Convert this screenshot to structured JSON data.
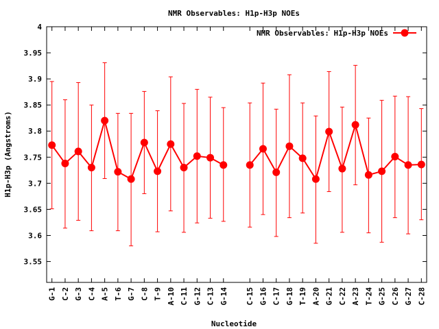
{
  "chart_data": {
    "type": "line",
    "title": "NMR Observables: H1p-H3p NOEs",
    "xlabel": "Nucleotide",
    "ylabel": "H1p-H3p (Angstroms)",
    "ylim": [
      3.51,
      4.0
    ],
    "yticks": [
      "3.55",
      "3.6",
      "3.65",
      "3.7",
      "3.75",
      "3.8",
      "3.85",
      "3.9",
      "3.95",
      "4"
    ],
    "grid": false,
    "legend_position": "top-right",
    "series": [
      {
        "name": "NMR Observables: H1p-H3p NOEs",
        "color": "#ff0000",
        "points": [
          {
            "x": 1,
            "label": "G-1",
            "y": 3.773,
            "err_low": 3.651,
            "err_high": 3.895
          },
          {
            "x": 2,
            "label": "C-2",
            "y": 3.738,
            "err_low": 3.614,
            "err_high": 3.86
          },
          {
            "x": 3,
            "label": "G-3",
            "y": 3.761,
            "err_low": 3.629,
            "err_high": 3.893
          },
          {
            "x": 4,
            "label": "C-4",
            "y": 3.73,
            "err_low": 3.609,
            "err_high": 3.85
          },
          {
            "x": 5,
            "label": "A-5",
            "y": 3.82,
            "err_low": 3.709,
            "err_high": 3.931
          },
          {
            "x": 6,
            "label": "T-6",
            "y": 3.722,
            "err_low": 3.609,
            "err_high": 3.834
          },
          {
            "x": 7,
            "label": "G-7",
            "y": 3.708,
            "err_low": 3.58,
            "err_high": 3.834
          },
          {
            "x": 8,
            "label": "C-8",
            "y": 3.778,
            "err_low": 3.68,
            "err_high": 3.876
          },
          {
            "x": 9,
            "label": "T-9",
            "y": 3.723,
            "err_low": 3.607,
            "err_high": 3.839
          },
          {
            "x": 10,
            "label": "A-10",
            "y": 3.775,
            "err_low": 3.647,
            "err_high": 3.904
          },
          {
            "x": 11,
            "label": "C-11",
            "y": 3.73,
            "err_low": 3.606,
            "err_high": 3.853
          },
          {
            "x": 12,
            "label": "G-12",
            "y": 3.752,
            "err_low": 3.624,
            "err_high": 3.88
          },
          {
            "x": 13,
            "label": "C-13",
            "y": 3.749,
            "err_low": 3.633,
            "err_high": 3.865
          },
          {
            "x": 14,
            "label": "G-14",
            "y": 3.735,
            "err_low": 3.627,
            "err_high": 3.845
          },
          {
            "x": 16,
            "label": "C-15",
            "y": 3.735,
            "err_low": 3.616,
            "err_high": 3.854
          },
          {
            "x": 17,
            "label": "G-16",
            "y": 3.766,
            "err_low": 3.64,
            "err_high": 3.892
          },
          {
            "x": 18,
            "label": "C-17",
            "y": 3.721,
            "err_low": 3.598,
            "err_high": 3.842
          },
          {
            "x": 19,
            "label": "G-18",
            "y": 3.771,
            "err_low": 3.634,
            "err_high": 3.908
          },
          {
            "x": 20,
            "label": "T-19",
            "y": 3.748,
            "err_low": 3.643,
            "err_high": 3.854
          },
          {
            "x": 21,
            "label": "A-20",
            "y": 3.708,
            "err_low": 3.585,
            "err_high": 3.829
          },
          {
            "x": 22,
            "label": "G-21",
            "y": 3.799,
            "err_low": 3.684,
            "err_high": 3.914
          },
          {
            "x": 23,
            "label": "C-22",
            "y": 3.728,
            "err_low": 3.606,
            "err_high": 3.846
          },
          {
            "x": 24,
            "label": "A-23",
            "y": 3.812,
            "err_low": 3.697,
            "err_high": 3.926
          },
          {
            "x": 25,
            "label": "T-24",
            "y": 3.716,
            "err_low": 3.605,
            "err_high": 3.825
          },
          {
            "x": 26,
            "label": "G-25",
            "y": 3.723,
            "err_low": 3.587,
            "err_high": 3.859
          },
          {
            "x": 27,
            "label": "C-26",
            "y": 3.751,
            "err_low": 3.634,
            "err_high": 3.867
          },
          {
            "x": 28,
            "label": "G-27",
            "y": 3.735,
            "err_low": 3.603,
            "err_high": 3.866
          },
          {
            "x": 29,
            "label": "C-28",
            "y": 3.736,
            "err_low": 3.63,
            "err_high": 3.843
          }
        ]
      }
    ]
  }
}
